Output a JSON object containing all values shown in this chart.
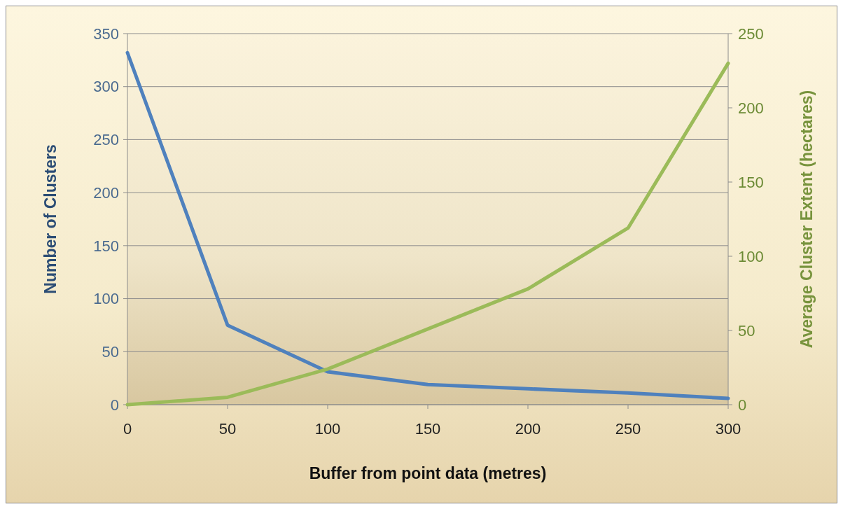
{
  "chart_data": {
    "type": "line",
    "xlabel": "Buffer from point data (metres)",
    "ylabel": "Number of Clusters",
    "y2label": "Average Cluster Extent (hectares)",
    "x": [
      0,
      50,
      100,
      150,
      200,
      250,
      300
    ],
    "series": [
      {
        "color": "#4f81bd",
        "values": [
          332,
          75,
          31,
          19,
          15,
          11,
          6
        ]
      },
      {
        "color": "#9bbb59",
        "axis": "y2",
        "values": [
          0,
          5,
          24,
          51,
          78,
          119,
          230
        ]
      }
    ],
    "xlim": [
      0,
      300
    ],
    "xticks": [
      0,
      50,
      100,
      150,
      200,
      250,
      300
    ],
    "ylim": [
      0,
      350
    ],
    "yticks": [
      0,
      50,
      100,
      150,
      200,
      250,
      300,
      350
    ],
    "y2lim": [
      0,
      250
    ],
    "y2ticks": [
      0,
      50,
      100,
      150,
      200,
      250
    ],
    "grid": "y",
    "marker": "none",
    "line_style": "solid"
  }
}
